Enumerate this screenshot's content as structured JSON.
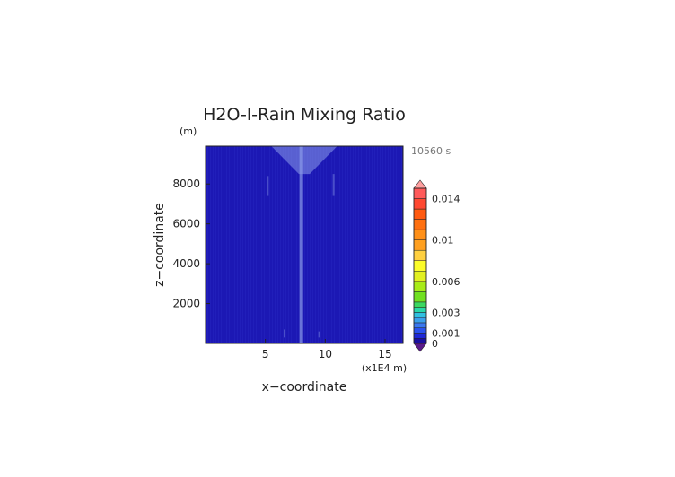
{
  "chart_data": {
    "type": "heatmap",
    "title": "H2O-l-Rain Mixing Ratio",
    "y_unit": "(m)",
    "xlabel": "x−coordinate",
    "ylabel": "z−coordinate",
    "x_unit_label": "(x1E4 m)",
    "time_label": "10560 s",
    "xlim": [
      0,
      16.5
    ],
    "ylim": [
      0,
      9900
    ],
    "x_ticks": [
      5,
      10,
      15
    ],
    "y_ticks": [
      2000,
      4000,
      6000,
      8000
    ],
    "grid": false,
    "field": {
      "background_value": 0,
      "background_color": "#1c18b4",
      "features": [
        {
          "name": "column",
          "x": 8.0,
          "z_range": [
            0,
            9900
          ],
          "value": 0.0005
        },
        {
          "name": "top-plume",
          "x_range": [
            5.5,
            11.0
          ],
          "z_range": [
            8500,
            9900
          ],
          "value": 0.0004
        },
        {
          "name": "side-streak-left",
          "x": 5.2,
          "z_range": [
            7400,
            8400
          ],
          "value": 0.0003
        },
        {
          "name": "side-streak-right",
          "x": 10.7,
          "z_range": [
            7400,
            8500
          ],
          "value": 0.0003
        },
        {
          "name": "low-spot-1",
          "x": 6.6,
          "z_range": [
            300,
            700
          ],
          "value": 0.0003
        },
        {
          "name": "low-spot-2",
          "x": 9.5,
          "z_range": [
            300,
            600
          ],
          "value": 0.0003
        }
      ]
    },
    "colorbar": {
      "levels": [
        0,
        0.0005,
        0.001,
        0.0015,
        0.002,
        0.0025,
        0.003,
        0.0035,
        0.004,
        0.005,
        0.006,
        0.007,
        0.008,
        0.009,
        0.01,
        0.011,
        0.012,
        0.013,
        0.014,
        0.015
      ],
      "colors": [
        "#1a0fa0",
        "#1e28d8",
        "#2a52ee",
        "#3a78f0",
        "#3aa0ec",
        "#30c0e0",
        "#28d8a8",
        "#3ad860",
        "#70e020",
        "#a8ec18",
        "#e2f020",
        "#fcfc28",
        "#ffd040",
        "#ffa020",
        "#ff9018",
        "#ff7010",
        "#ff5a10",
        "#ff4830",
        "#ff5a5a",
        "#ff8080"
      ],
      "under_color": "#5a1a8a",
      "over_color": "#ffa0a0",
      "tick_values": [
        0,
        0.001,
        0.003,
        0.006,
        0.01,
        0.014
      ],
      "tick_labels": [
        "0",
        "0.001",
        "0.003",
        "0.006",
        "0.01",
        "0.014"
      ]
    }
  }
}
